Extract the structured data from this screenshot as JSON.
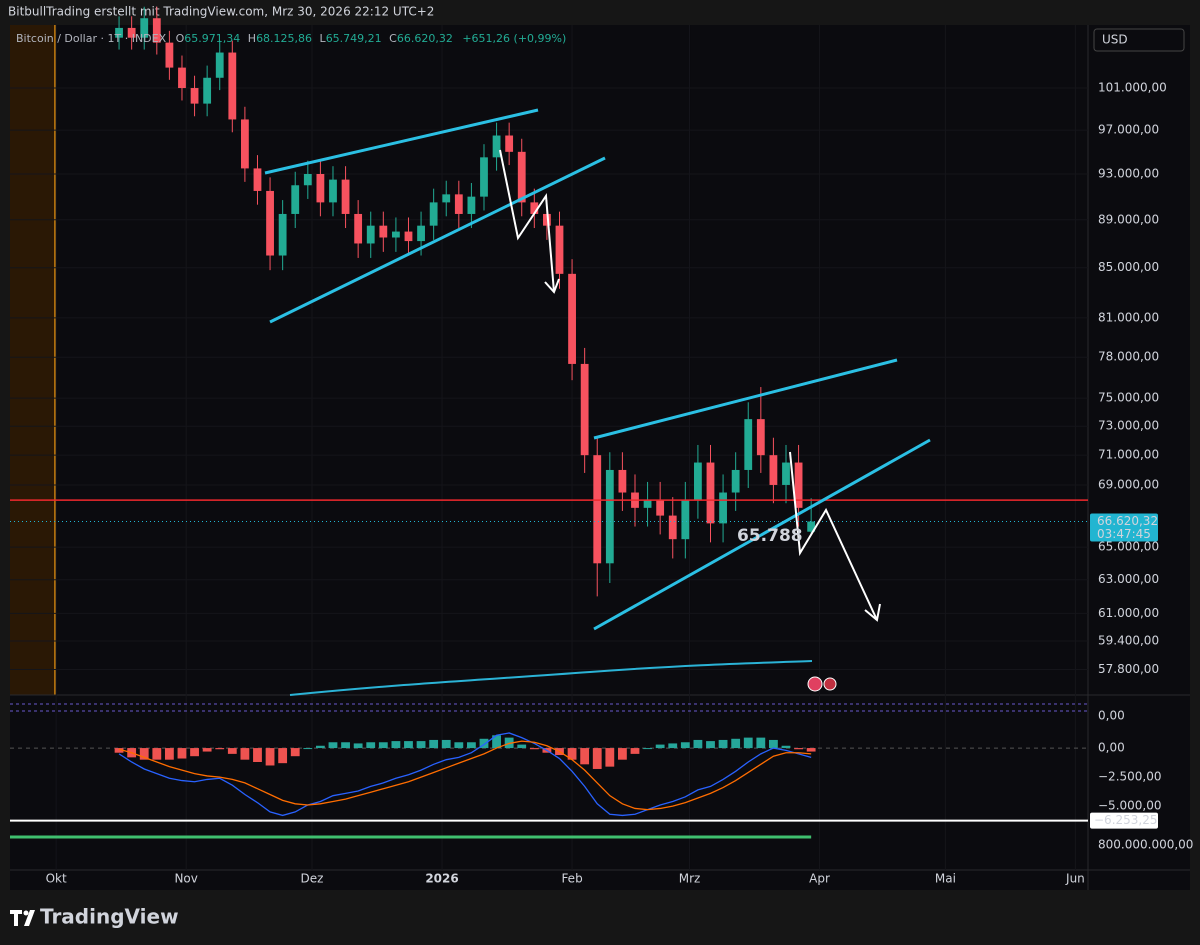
{
  "header": {
    "text": "BitbullTrading erstellt mit TradingView.com, Mrz 30, 2026 22:12 UTC+2"
  },
  "footer": {
    "brand": "TradingView"
  },
  "chart_data": [
    {
      "type": "candlestick",
      "symbol": "Bitcoin / Dollar · 1T · INDEX",
      "ohlc_legend": [
        {
          "key": "O",
          "value": "65.971,34"
        },
        {
          "key": "H",
          "value": "68.125,86"
        },
        {
          "key": "L",
          "value": "65.749,21"
        },
        {
          "key": "C",
          "value": "66.620,32"
        }
      ],
      "change": "+651,26 (+0,99%)",
      "currency": "USD",
      "last_price_label": "66.620,32",
      "countdown": "03:47:45",
      "annotation": "65.788",
      "horizontal_line": 68000,
      "log_scale": true,
      "up_color": "#22ab94",
      "down_color": "#f7525f",
      "x": [
        15,
        18,
        21,
        24,
        27,
        30,
        33,
        36,
        39,
        42,
        45,
        48,
        51,
        54,
        57,
        60,
        63,
        66,
        69,
        72,
        75,
        78,
        81,
        84,
        87,
        90,
        93,
        96,
        99,
        102,
        105,
        108,
        111,
        114,
        117,
        120,
        123,
        126,
        129,
        132,
        135,
        138,
        141,
        144,
        147,
        150,
        153,
        156,
        159,
        162,
        165,
        168,
        171,
        174,
        177,
        180
      ],
      "open": [
        106000,
        107000,
        106000,
        108000,
        105500,
        103000,
        101000,
        99500,
        102000,
        104500,
        98000,
        93500,
        91500,
        86000,
        89500,
        92000,
        93000,
        90500,
        92500,
        89500,
        87000,
        88500,
        87500,
        88000,
        87200,
        88500,
        90500,
        91200,
        89500,
        91000,
        94500,
        96500,
        95000,
        90500,
        89500,
        88500,
        84500,
        77500,
        71000,
        64000,
        70000,
        68500,
        67500,
        68000,
        67000,
        65500,
        68000,
        70500,
        66500,
        68500,
        70000,
        73500,
        71000,
        69000,
        70500,
        65971.34
      ],
      "high": [
        108200,
        108200,
        109200,
        109200,
        106700,
        104200,
        102200,
        103200,
        105700,
        105700,
        99200,
        94700,
        92700,
        90700,
        93200,
        94200,
        94200,
        93700,
        93700,
        90700,
        89700,
        89700,
        89200,
        89200,
        89700,
        91700,
        92400,
        92400,
        92200,
        95700,
        97700,
        97700,
        96200,
        91700,
        90700,
        89700,
        85700,
        78700,
        72200,
        71200,
        71200,
        69700,
        69200,
        69200,
        68200,
        69200,
        71700,
        71700,
        69700,
        71200,
        74700,
        75800,
        72200,
        71700,
        71700,
        68125.86
      ],
      "low": [
        104800,
        104800,
        104800,
        104300,
        101800,
        99800,
        98300,
        98300,
        100800,
        96800,
        92300,
        90300,
        84800,
        84800,
        88300,
        90800,
        89300,
        89300,
        88300,
        85800,
        85800,
        86300,
        86300,
        86000,
        86000,
        87300,
        89300,
        88300,
        88300,
        89800,
        93300,
        93800,
        89300,
        88300,
        87300,
        83300,
        76300,
        69800,
        62000,
        62800,
        67300,
        66300,
        66300,
        65800,
        64300,
        64300,
        66800,
        65300,
        65300,
        67300,
        68800,
        69800,
        67800,
        67800,
        66300,
        65749.21
      ],
      "close": [
        107000,
        106000,
        108000,
        105500,
        103000,
        101000,
        99500,
        102000,
        104500,
        98000,
        93500,
        91500,
        86000,
        89500,
        92000,
        93000,
        90500,
        92500,
        89500,
        87000,
        88500,
        87500,
        88000,
        87200,
        88500,
        90500,
        91200,
        89500,
        91000,
        94500,
        96500,
        95000,
        90500,
        89500,
        88500,
        84500,
        77500,
        71000,
        64000,
        70000,
        68500,
        67500,
        68000,
        67000,
        65500,
        68000,
        70500,
        66500,
        68500,
        70000,
        73500,
        71000,
        69000,
        70500,
        67500,
        66620.32
      ],
      "xlim": [
        -11,
        246
      ],
      "xticks": [
        {
          "value": 0,
          "label": "Okt"
        },
        {
          "value": 31,
          "label": "Nov"
        },
        {
          "value": 61,
          "label": "Dez"
        },
        {
          "value": 92,
          "label": "2026"
        },
        {
          "value": 123,
          "label": "Feb"
        },
        {
          "value": 151,
          "label": "Mrz"
        },
        {
          "value": 182,
          "label": "Apr"
        },
        {
          "value": 212,
          "label": "Mai"
        },
        {
          "value": 243,
          "label": "Jun"
        }
      ],
      "ylim": [
        56400,
        107300
      ],
      "yticks": [
        {
          "value": 101000,
          "label": "101.000,00"
        },
        {
          "value": 97000,
          "label": "97.000,00"
        },
        {
          "value": 93000,
          "label": "93.000,00"
        },
        {
          "value": 89000,
          "label": "89.000,00"
        },
        {
          "value": 85000,
          "label": "85.000,00"
        },
        {
          "value": 81000,
          "label": "81.000,00"
        },
        {
          "value": 78000,
          "label": "78.000,00"
        },
        {
          "value": 75000,
          "label": "75.000,00"
        },
        {
          "value": 73000,
          "label": "73.000,00"
        },
        {
          "value": 71000,
          "label": "71.000,00"
        },
        {
          "value": 69000,
          "label": "69.000,00"
        },
        {
          "value": 65000,
          "label": "65.000,00"
        },
        {
          "value": 63000,
          "label": "63.000,00"
        },
        {
          "value": 61000,
          "label": "61.000,00"
        },
        {
          "value": 59400,
          "label": "59.400,00"
        },
        {
          "value": 57800,
          "label": "57.800,00"
        }
      ]
    },
    {
      "type": "line",
      "x": [
        15,
        18,
        21,
        24,
        27,
        30,
        33,
        36,
        39,
        42,
        45,
        48,
        51,
        54,
        57,
        60,
        63,
        66,
        69,
        72,
        75,
        78,
        81,
        84,
        87,
        90,
        93,
        96,
        99,
        102,
        105,
        108,
        111,
        114,
        117,
        120,
        123,
        126,
        129,
        132,
        135,
        138,
        141,
        144,
        147,
        150,
        153,
        156,
        159,
        162,
        165,
        168,
        171,
        174,
        177,
        180
      ],
      "series": [
        {
          "name": "MACD",
          "color": "#2962ff",
          "values": [
            -500,
            -1200,
            -1800,
            -2200,
            -2600,
            -2800,
            -2900,
            -2700,
            -2600,
            -3200,
            -4000,
            -4700,
            -5500,
            -5800,
            -5500,
            -4900,
            -4600,
            -4100,
            -3900,
            -3700,
            -3300,
            -3000,
            -2600,
            -2300,
            -1900,
            -1400,
            -1000,
            -800,
            -400,
            300,
            1100,
            1300,
            900,
            400,
            -200,
            -900,
            -2000,
            -3300,
            -4800,
            -5700,
            -5800,
            -5700,
            -5300,
            -4900,
            -4600,
            -4200,
            -3600,
            -3300,
            -2700,
            -2000,
            -1200,
            -500,
            0,
            -200,
            -500,
            -800
          ]
        },
        {
          "name": "Signal",
          "color": "#ff6d00",
          "values": [
            -100,
            -400,
            -800,
            -1200,
            -1600,
            -1900,
            -2200,
            -2400,
            -2500,
            -2700,
            -3000,
            -3500,
            -4000,
            -4500,
            -4800,
            -4900,
            -4800,
            -4600,
            -4400,
            -4100,
            -3800,
            -3500,
            -3200,
            -2900,
            -2500,
            -2100,
            -1700,
            -1300,
            -900,
            -500,
            0,
            400,
            600,
            500,
            200,
            -300,
            -1000,
            -1900,
            -3000,
            -4100,
            -4800,
            -5200,
            -5300,
            -5200,
            -5000,
            -4700,
            -4300,
            -3900,
            -3400,
            -2800,
            -2100,
            -1400,
            -700,
            -400,
            -400,
            -500
          ]
        }
      ],
      "hist_up_color": "#26a69a",
      "hist_down_color": "#ef5350",
      "level": {
        "value": -6253.25,
        "label": "−6.253,25"
      },
      "ylim": [
        -10500,
        4570
      ],
      "yticks": [
        {
          "value": 0,
          "label": "0,00"
        },
        {
          "value": -2500,
          "label": "−2.500,00"
        },
        {
          "value": -5000,
          "label": "−5.000,00"
        }
      ],
      "other_axis_labels": [
        "0,00",
        "800.000.000,00"
      ]
    }
  ]
}
